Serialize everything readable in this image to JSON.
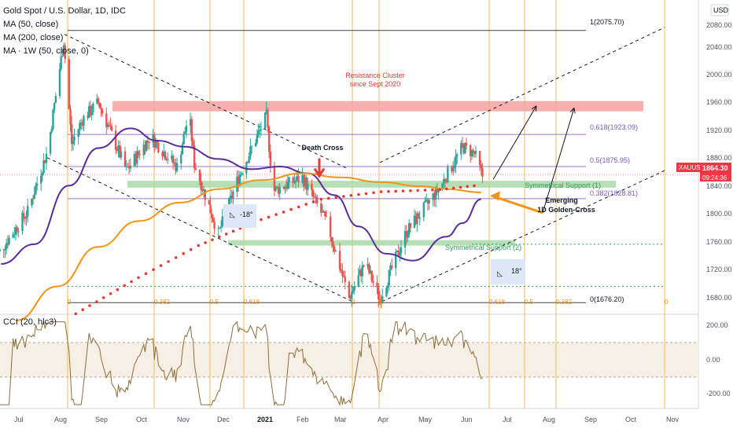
{
  "header": {
    "symbol_title": "Gold Spot / U.S. Dollar, 1D, IDC",
    "indicators": [
      "MA (50, close)",
      "MA (200, close)",
      "MA · 1W (50, close, 0)"
    ],
    "currency": "USD"
  },
  "price_axis": {
    "ticks": [
      "2080.00",
      "2040.00",
      "2000.00",
      "1960.00",
      "1920.00",
      "1880.00",
      "1840.00",
      "1800.00",
      "1760.00",
      "1720.00",
      "1680.00"
    ],
    "last_price": "1864.30",
    "countdown": "09:24:36",
    "ticker": "XAUUSD"
  },
  "cci": {
    "label": "CCI (20, hlc3)",
    "ticks": [
      "200.00",
      "0.00",
      "-200.00"
    ],
    "band": [
      -100,
      100
    ]
  },
  "time_axis": {
    "labels": [
      "Jul",
      "Aug",
      "Sep",
      "Oct",
      "Nov",
      "Dec",
      "2021",
      "Feb",
      "Mar",
      "Apr",
      "May",
      "Jun",
      "Jul",
      "Aug",
      "Sep",
      "Oct",
      "Nov"
    ]
  },
  "annotations": {
    "resistance": [
      "Resistance Cluster",
      "since Sept 2020"
    ],
    "death_cross": "Death Cross",
    "golden_cross": [
      "Emerging",
      "1D Golden-Cross"
    ],
    "support1": "Symmetrical Support (1)",
    "support2": "Symmetrical Support (2)",
    "angle_left": "-18°",
    "angle_right": "18°"
  },
  "fib": {
    "level_1": "1(2075.70)",
    "level_0618": "0.618(1923.09)",
    "level_05": "0.5(1875.95)",
    "level_0382": "0.382(1828.81)",
    "level_0": "0(1676.20)"
  },
  "fib_time": {
    "left": [
      "0",
      "0.382",
      "0.5",
      "0.618",
      "1"
    ],
    "right": [
      "1",
      "0.618",
      "0.5",
      "0.382",
      "0"
    ]
  },
  "chart_data": {
    "type": "line",
    "title": "Gold Spot / U.S. Dollar, 1D, IDC",
    "ylim": [
      1660,
      2100
    ],
    "x_range": [
      "2020-06-15",
      "2021-11-30"
    ],
    "series": [
      {
        "name": "MA (50, close)",
        "color": "#5b2c9c",
        "points": [
          [
            "2020-06-20",
            1733
          ],
          [
            "2020-07-15",
            1762
          ],
          [
            "2020-08-10",
            1848
          ],
          [
            "2020-09-01",
            1903
          ],
          [
            "2020-09-25",
            1932
          ],
          [
            "2020-10-15",
            1914
          ],
          [
            "2020-11-05",
            1905
          ],
          [
            "2020-11-30",
            1887
          ],
          [
            "2020-12-25",
            1872
          ],
          [
            "2021-01-15",
            1876
          ],
          [
            "2021-02-05",
            1866
          ],
          [
            "2021-02-25",
            1834
          ],
          [
            "2021-03-15",
            1788
          ],
          [
            "2021-04-05",
            1748
          ],
          [
            "2021-04-25",
            1738
          ],
          [
            "2021-05-20",
            1773
          ],
          [
            "2021-06-01",
            1793
          ],
          [
            "2021-06-15",
            1828
          ]
        ]
      },
      {
        "name": "MA (200, close)",
        "color": "#f29416",
        "points": [
          [
            "2020-07-01",
            1650
          ],
          [
            "2020-08-01",
            1700
          ],
          [
            "2020-09-01",
            1758
          ],
          [
            "2020-10-01",
            1796
          ],
          [
            "2020-11-01",
            1823
          ],
          [
            "2020-12-01",
            1843
          ],
          [
            "2021-01-01",
            1856
          ],
          [
            "2021-02-01",
            1866
          ],
          [
            "2021-03-01",
            1860
          ],
          [
            "2021-04-01",
            1853
          ],
          [
            "2021-05-01",
            1847
          ],
          [
            "2021-05-20",
            1843
          ],
          [
            "2021-06-15",
            1838
          ]
        ]
      },
      {
        "name": "MA · 1W (50, close, 0)",
        "color": "#e53935",
        "points": [
          [
            "2020-08-15",
            1660
          ],
          [
            "2020-10-01",
            1713
          ],
          [
            "2020-11-15",
            1760
          ],
          [
            "2021-01-01",
            1798
          ],
          [
            "2021-02-15",
            1828
          ],
          [
            "2021-04-01",
            1839
          ],
          [
            "2021-05-15",
            1842
          ],
          [
            "2021-06-15",
            1849
          ]
        ]
      }
    ],
    "zones": [
      {
        "label": "Resistance Cluster since Sept 2020",
        "y": [
          1957,
          1972
        ],
        "color": "#f4a2a2"
      },
      {
        "label": "Symmetrical Support (1)",
        "y": [
          1845,
          1855
        ],
        "color": "#a9d9a9"
      },
      {
        "label": "Symmetrical Support (2)",
        "y": [
          1760,
          1768
        ],
        "color": "#a9d9a9"
      }
    ],
    "fibonacci_levels": [
      {
        "ratio": "1",
        "price": 2075.7
      },
      {
        "ratio": "0.618",
        "price": 1923.09
      },
      {
        "ratio": "0.5",
        "price": 1875.95
      },
      {
        "ratio": "0.382",
        "price": 1828.81
      },
      {
        "ratio": "0",
        "price": 1676.2
      }
    ],
    "cci_range": [
      -300,
      300
    ]
  }
}
